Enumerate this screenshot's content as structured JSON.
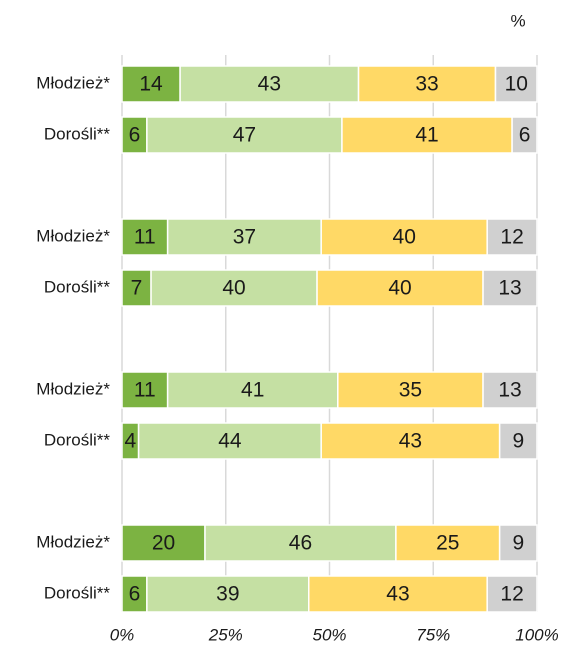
{
  "chart_data": {
    "type": "stacked-bar-horizontal",
    "unit": "%",
    "categories": [
      "Młodzież*",
      "Dorośli**",
      "Młodzież*",
      "Dorośli**",
      "Młodzież*",
      "Dorośli**",
      "Młodzież*",
      "Dorośli**"
    ],
    "series": [
      {
        "color": "#7cb342",
        "values": [
          14,
          6,
          11,
          7,
          11,
          4,
          20,
          6
        ]
      },
      {
        "color": "#c5e0a3",
        "values": [
          43,
          47,
          37,
          40,
          41,
          44,
          46,
          39
        ]
      },
      {
        "color": "#ffd966",
        "values": [
          33,
          41,
          40,
          40,
          35,
          43,
          25,
          43
        ]
      },
      {
        "color": "#d0d0d0",
        "values": [
          10,
          6,
          12,
          13,
          13,
          9,
          9,
          12
        ]
      }
    ],
    "xlim": [
      0,
      100
    ],
    "xticks": [
      {
        "value": 0,
        "label": "0%"
      },
      {
        "value": 25,
        "label": "25%"
      },
      {
        "value": 50,
        "label": "50%"
      },
      {
        "value": 75,
        "label": "75%"
      },
      {
        "value": 100,
        "label": "100%"
      }
    ],
    "grid": true
  }
}
